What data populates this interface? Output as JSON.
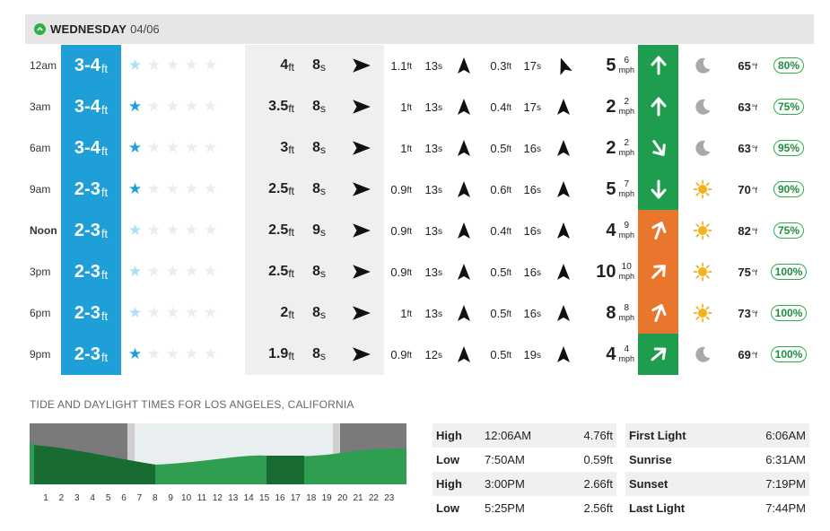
{
  "header": {
    "day": "WEDNESDAY",
    "date": "04/06"
  },
  "colors": {
    "surf": "#1e9fd8",
    "wind_good": "#1f9d4f",
    "wind_bad": "#e8762d",
    "humidity": "#2bb04a"
  },
  "rows": [
    {
      "time": "12am",
      "surf": "3-4",
      "surf_unit": "ft",
      "rating": 1,
      "rating_class": "half",
      "sw1_h": "4",
      "sw1_p": "8",
      "sw1_dir_deg": 90,
      "sw2_h": "1.1",
      "sw2_p": "13",
      "sw2_dir_deg": 0,
      "sw3_h": "0.3",
      "sw3_p": "17",
      "sw3_dir_deg": -20,
      "wind": "5",
      "gust": "6",
      "wind_unit": "mph",
      "wind_dir_deg": 0,
      "wind_color": "good",
      "weather": "moon-icon",
      "temp": "65",
      "temp_unit": "°f",
      "humidity": "80%"
    },
    {
      "time": "3am",
      "surf": "3-4",
      "surf_unit": "ft",
      "rating": 1,
      "rating_class": "on",
      "sw1_h": "3.5",
      "sw1_p": "8",
      "sw1_dir_deg": 90,
      "sw2_h": "1",
      "sw2_p": "13",
      "sw2_dir_deg": 0,
      "sw3_h": "0.4",
      "sw3_p": "17",
      "sw3_dir_deg": 0,
      "wind": "2",
      "gust": "2",
      "wind_unit": "mph",
      "wind_dir_deg": 0,
      "wind_color": "good",
      "weather": "moon-icon",
      "temp": "63",
      "temp_unit": "°f",
      "humidity": "75%"
    },
    {
      "time": "6am",
      "surf": "3-4",
      "surf_unit": "ft",
      "rating": 1,
      "rating_class": "on",
      "sw1_h": "3",
      "sw1_p": "8",
      "sw1_dir_deg": 90,
      "sw2_h": "1",
      "sw2_p": "13",
      "sw2_dir_deg": 0,
      "sw3_h": "0.5",
      "sw3_p": "16",
      "sw3_dir_deg": 0,
      "wind": "2",
      "gust": "2",
      "wind_unit": "mph",
      "wind_dir_deg": 145,
      "wind_color": "good",
      "weather": "moon-icon",
      "temp": "63",
      "temp_unit": "°f",
      "humidity": "95%"
    },
    {
      "time": "9am",
      "surf": "2-3",
      "surf_unit": "ft",
      "rating": 1,
      "rating_class": "on",
      "sw1_h": "2.5",
      "sw1_p": "8",
      "sw1_dir_deg": 90,
      "sw2_h": "0.9",
      "sw2_p": "13",
      "sw2_dir_deg": 0,
      "sw3_h": "0.6",
      "sw3_p": "16",
      "sw3_dir_deg": 0,
      "wind": "5",
      "gust": "7",
      "wind_unit": "mph",
      "wind_dir_deg": 180,
      "wind_color": "good",
      "weather": "sun-icon",
      "temp": "70",
      "temp_unit": "°f",
      "humidity": "90%"
    },
    {
      "time": "Noon",
      "surf": "2-3",
      "surf_unit": "ft",
      "rating": 1,
      "rating_class": "half",
      "sw1_h": "2.5",
      "sw1_p": "9",
      "sw1_dir_deg": 90,
      "sw2_h": "0.9",
      "sw2_p": "13",
      "sw2_dir_deg": 0,
      "sw3_h": "0.4",
      "sw3_p": "16",
      "sw3_dir_deg": 0,
      "wind": "4",
      "gust": "9",
      "wind_unit": "mph",
      "wind_dir_deg": 20,
      "wind_color": "bad",
      "weather": "sun-icon",
      "temp": "82",
      "temp_unit": "°f",
      "humidity": "75%"
    },
    {
      "time": "3pm",
      "surf": "2-3",
      "surf_unit": "ft",
      "rating": 1,
      "rating_class": "half",
      "sw1_h": "2.5",
      "sw1_p": "8",
      "sw1_dir_deg": 90,
      "sw2_h": "0.9",
      "sw2_p": "13",
      "sw2_dir_deg": 0,
      "sw3_h": "0.5",
      "sw3_p": "16",
      "sw3_dir_deg": 0,
      "wind": "10",
      "gust": "10",
      "wind_unit": "mph",
      "wind_dir_deg": 45,
      "wind_color": "bad",
      "weather": "sun-icon",
      "temp": "75",
      "temp_unit": "°f",
      "humidity": "100%"
    },
    {
      "time": "6pm",
      "surf": "2-3",
      "surf_unit": "ft",
      "rating": 1,
      "rating_class": "half",
      "sw1_h": "2",
      "sw1_p": "8",
      "sw1_dir_deg": 90,
      "sw2_h": "1",
      "sw2_p": "13",
      "sw2_dir_deg": 0,
      "sw3_h": "0.5",
      "sw3_p": "16",
      "sw3_dir_deg": 0,
      "wind": "8",
      "gust": "8",
      "wind_unit": "mph",
      "wind_dir_deg": 20,
      "wind_color": "bad",
      "weather": "sun-icon",
      "temp": "73",
      "temp_unit": "°f",
      "humidity": "100%"
    },
    {
      "time": "9pm",
      "surf": "2-3",
      "surf_unit": "ft",
      "rating": 1,
      "rating_class": "on",
      "sw1_h": "1.9",
      "sw1_p": "8",
      "sw1_dir_deg": 90,
      "sw2_h": "0.9",
      "sw2_p": "12",
      "sw2_dir_deg": 0,
      "sw3_h": "0.5",
      "sw3_p": "19",
      "sw3_dir_deg": 0,
      "wind": "4",
      "gust": "4",
      "wind_unit": "mph",
      "wind_dir_deg": 50,
      "wind_color": "good",
      "weather": "moon-icon",
      "temp": "69",
      "temp_unit": "°f",
      "humidity": "100%"
    }
  ],
  "units": {
    "ft": "ft",
    "s": "s"
  },
  "tide": {
    "title": "TIDE AND DAYLIGHT TIMES FOR LOS ANGELES, CALIFORNIA",
    "hours": [
      "1",
      "2",
      "3",
      "4",
      "5",
      "6",
      "7",
      "8",
      "9",
      "10",
      "11",
      "12",
      "13",
      "14",
      "15",
      "16",
      "17",
      "18",
      "19",
      "20",
      "21",
      "22",
      "23"
    ],
    "tides": [
      {
        "type": "High",
        "time": "12:06AM",
        "height": "4.76ft"
      },
      {
        "type": "Low",
        "time": "7:50AM",
        "height": "0.59ft"
      },
      {
        "type": "High",
        "time": "3:00PM",
        "height": "2.66ft"
      },
      {
        "type": "Low",
        "time": "5:25PM",
        "height": "2.56ft"
      }
    ],
    "daylight": [
      {
        "label": "First Light",
        "time": "6:06AM"
      },
      {
        "label": "Sunrise",
        "time": "6:31AM"
      },
      {
        "label": "Sunset",
        "time": "7:19PM"
      },
      {
        "label": "Last Light",
        "time": "7:44PM"
      }
    ]
  }
}
